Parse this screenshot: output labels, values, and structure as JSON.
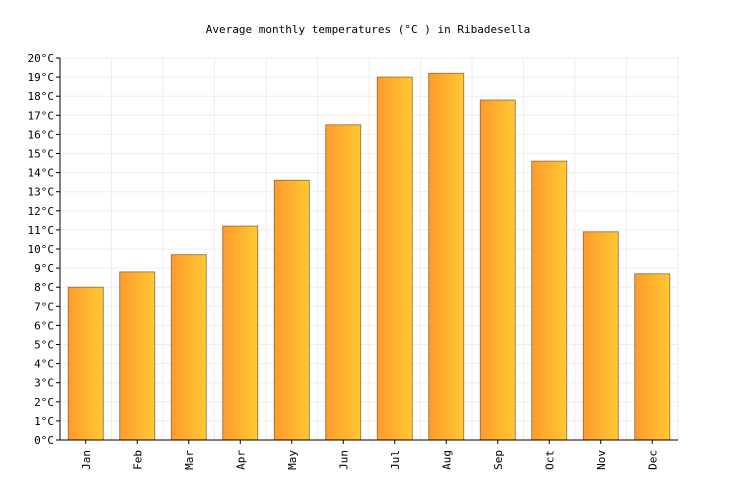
{
  "chart_data": {
    "type": "bar",
    "title": "Average monthly temperatures (°C ) in Ribadesella",
    "categories": [
      "Jan",
      "Feb",
      "Mar",
      "Apr",
      "May",
      "Jun",
      "Jul",
      "Aug",
      "Sep",
      "Oct",
      "Nov",
      "Dec"
    ],
    "values": [
      8.0,
      8.8,
      9.7,
      11.2,
      13.6,
      16.5,
      19.0,
      19.2,
      17.8,
      14.6,
      10.9,
      8.7
    ],
    "ylim": [
      0,
      20
    ],
    "ytick_step": 1,
    "ytick_suffix": "°C",
    "grid": true,
    "colors": {
      "bar_left": "#ff9a2e",
      "bar_right": "#ffc933",
      "grid": "#eeeeee"
    }
  }
}
